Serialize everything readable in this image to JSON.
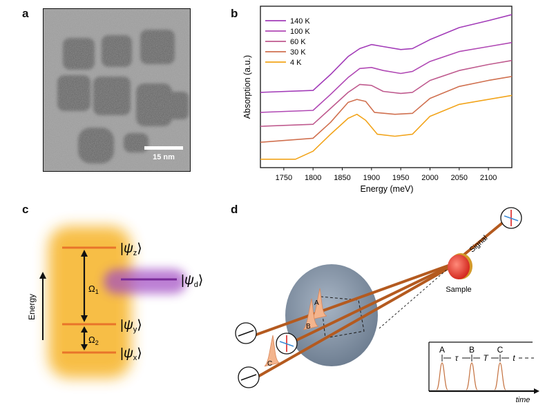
{
  "panels": {
    "a": "a",
    "b": "b",
    "c": "c",
    "d": "d"
  },
  "panel_a": {
    "scale_bar_label": "15 nm"
  },
  "chart_data": {
    "type": "line",
    "xlabel": "Energy (meV)",
    "ylabel": "Absorption (a.u.)",
    "xlim": [
      1710,
      2140
    ],
    "x_ticks": [
      "1750",
      "1800",
      "1850",
      "1900",
      "1950",
      "2000",
      "2050",
      "2100"
    ],
    "legend_position": "top-left",
    "series": [
      {
        "name": "140 K",
        "color": "#a23bb8",
        "x": [
          1710,
          1800,
          1830,
          1860,
          1880,
          1900,
          1920,
          1950,
          1970,
          2000,
          2050,
          2100,
          2140
        ],
        "y": [
          0.12,
          0.14,
          0.3,
          0.48,
          0.56,
          0.6,
          0.58,
          0.55,
          0.56,
          0.65,
          0.77,
          0.84,
          0.9
        ]
      },
      {
        "name": "100 K",
        "color": "#b048b4",
        "x": [
          1710,
          1800,
          1830,
          1860,
          1880,
          1900,
          1920,
          1950,
          1970,
          2000,
          2050,
          2100,
          2140
        ],
        "y": [
          -0.08,
          -0.06,
          0.1,
          0.27,
          0.36,
          0.37,
          0.34,
          0.31,
          0.33,
          0.43,
          0.53,
          0.58,
          0.62
        ]
      },
      {
        "name": "60 K",
        "color": "#bf5a8e",
        "x": [
          1710,
          1800,
          1830,
          1860,
          1880,
          1900,
          1920,
          1950,
          1970,
          2000,
          2050,
          2100,
          2140
        ],
        "y": [
          -0.22,
          -0.2,
          -0.04,
          0.12,
          0.2,
          0.19,
          0.13,
          0.11,
          0.12,
          0.24,
          0.34,
          0.4,
          0.44
        ]
      },
      {
        "name": "30 K",
        "color": "#d0704f",
        "x": [
          1710,
          1800,
          1830,
          1860,
          1875,
          1890,
          1905,
          1940,
          1970,
          2000,
          2050,
          2100,
          2140
        ],
        "y": [
          -0.38,
          -0.34,
          -0.18,
          0.02,
          0.05,
          0.03,
          -0.08,
          -0.1,
          -0.09,
          0.06,
          0.18,
          0.24,
          0.28
        ]
      },
      {
        "name": "4 K",
        "color": "#f2a41a",
        "x": [
          1710,
          1770,
          1800,
          1830,
          1860,
          1875,
          1890,
          1910,
          1940,
          1970,
          2000,
          2050,
          2100,
          2140
        ],
        "y": [
          -0.55,
          -0.55,
          -0.47,
          -0.3,
          -0.14,
          -0.1,
          -0.16,
          -0.3,
          -0.32,
          -0.3,
          -0.12,
          0.0,
          0.05,
          0.09
        ]
      }
    ]
  },
  "panel_c": {
    "axis_label": "Energy",
    "levels": [
      {
        "psi": "ψ",
        "sub": "z"
      },
      {
        "psi": "ψ",
        "sub": "d"
      },
      {
        "psi": "ψ",
        "sub": "y"
      },
      {
        "psi": "ψ",
        "sub": "x"
      }
    ],
    "omega1": "Ω",
    "omega1_sub": "1",
    "omega2": "Ω",
    "omega2_sub": "2"
  },
  "panel_d": {
    "signal_label": "Signal",
    "sample_label": "Sample",
    "pulse_labels": [
      "A",
      "B",
      "C"
    ],
    "inset": {
      "pulses": [
        "A",
        "B",
        "C"
      ],
      "delays": [
        "τ",
        "T",
        "t"
      ],
      "time_label": "time"
    }
  }
}
